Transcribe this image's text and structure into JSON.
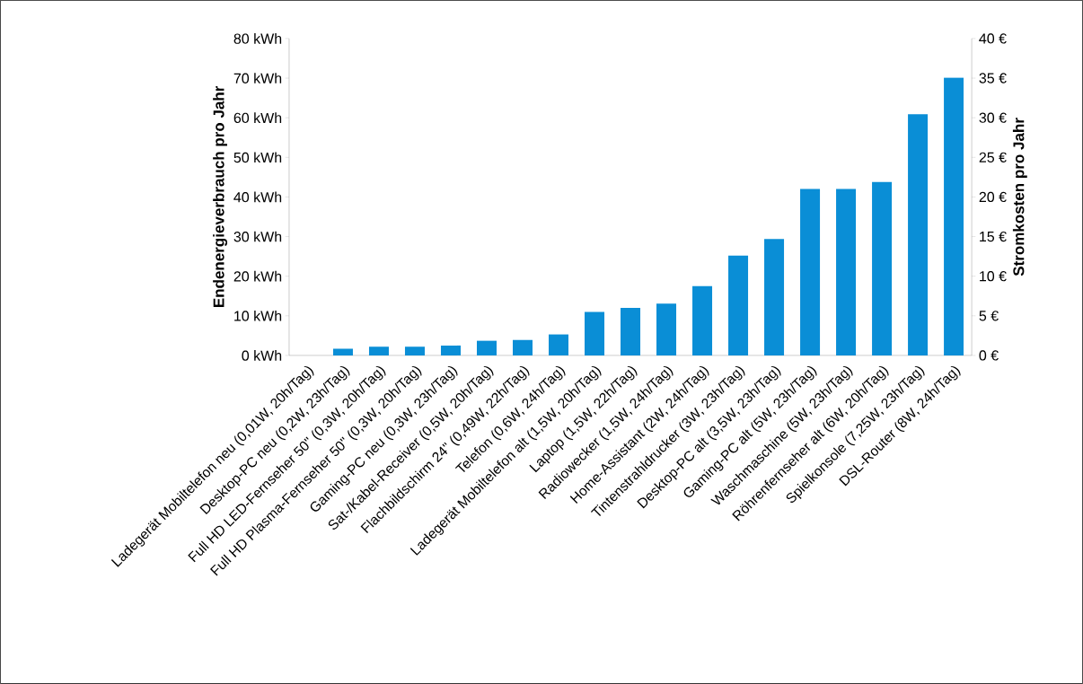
{
  "chart_data": {
    "type": "bar",
    "categories": [
      "Ladegerät Mobiltelefon neu (0,01W, 20h/Tag)",
      "Desktop-PC neu (0,2W, 23h/Tag)",
      "Full HD LED-Fernseher 50\" (0,3W, 20h/Tag)",
      "Full HD Plasma-Fernseher 50\" (0,3W, 20h/Tag)",
      "Gaming-PC neu (0,3W, 23h/Tag)",
      "Sat-/Kabel-Receiver (0,5W, 20h/Tag)",
      "Flachbildschirm 24\" (0,49W, 22h/Tag)",
      "Telefon (0,6W, 24h/Tag)",
      "Ladegerät Mobiltelefon alt (1,5W, 20h/Tag)",
      "Laptop (1,5W, 22h/Tag)",
      "Radiowecker (1,5W, 24h/Tag)",
      "Home-Assistant (2W, 24h/Tag)",
      "Tintenstrahldrucker (3W, 23h/Tag)",
      "Desktop-PC alt (3,5W, 23h/Tag)",
      "Gaming-PC alt (5W, 23h/Tag)",
      "Waschmaschine (5W, 23h/Tag)",
      "Röhrenfernseher alt (6W, 20h/Tag)",
      "Spielkonsole (7,25W, 23h/Tag)",
      "DSL-Router (8W, 24h/Tag)"
    ],
    "values": [
      null,
      1.7,
      2.2,
      2.2,
      2.5,
      3.7,
      3.9,
      5.3,
      11.0,
      12.0,
      13.1,
      17.5,
      25.2,
      29.4,
      42.0,
      42.0,
      43.8,
      60.9,
      70.1
    ],
    "color": "#0a8ed6",
    "ylabel": "Endenergieverbrauch pro Jahr",
    "y2label": "Stromkosten pro Jahr",
    "ylim": [
      0,
      80
    ],
    "yticks": [
      {
        "value": 0,
        "label": "0 kWh"
      },
      {
        "value": 10,
        "label": "10 kWh"
      },
      {
        "value": 20,
        "label": "20 kWh"
      },
      {
        "value": 30,
        "label": "30 kWh"
      },
      {
        "value": 40,
        "label": "40 kWh"
      },
      {
        "value": 50,
        "label": "50 kWh"
      },
      {
        "value": 60,
        "label": "60 kWh"
      },
      {
        "value": 70,
        "label": "70 kWh"
      },
      {
        "value": 80,
        "label": "80 kWh"
      }
    ],
    "y2lim": [
      0,
      40
    ],
    "y2ticks": [
      {
        "value": 0,
        "label": "0 €"
      },
      {
        "value": 5,
        "label": "5 €"
      },
      {
        "value": 10,
        "label": "10 €"
      },
      {
        "value": 15,
        "label": "15 €"
      },
      {
        "value": 20,
        "label": "20 €"
      },
      {
        "value": 25,
        "label": "25 €"
      },
      {
        "value": 30,
        "label": "30 €"
      },
      {
        "value": 35,
        "label": "35 €"
      },
      {
        "value": 40,
        "label": "40 €"
      }
    ],
    "grid": false
  }
}
